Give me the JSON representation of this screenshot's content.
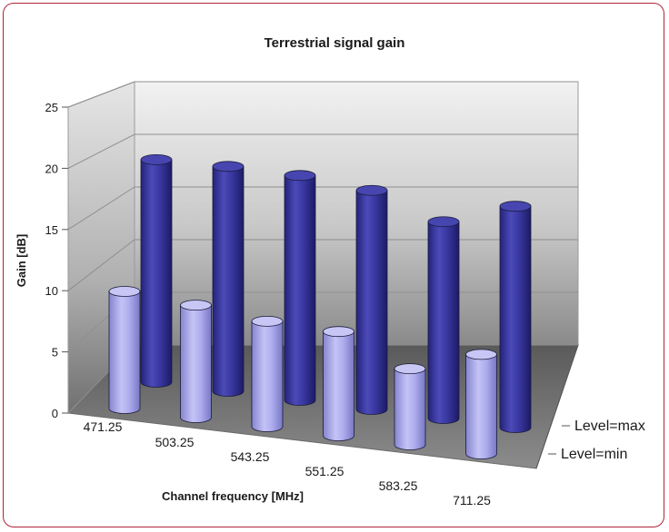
{
  "chart_data": {
    "type": "bar",
    "subtype": "3d-cylinder",
    "title": "Terrestrial signal gain",
    "xlabel": "Channel frequency [MHz]",
    "ylabel": "Gain [dB]",
    "ylim": [
      0,
      25
    ],
    "yticks": [
      0,
      5,
      10,
      15,
      20,
      25
    ],
    "categories": [
      "471.25",
      "503.25",
      "543.25",
      "551.25",
      "583.25",
      "711.25"
    ],
    "series": [
      {
        "name": "Level=max",
        "values": [
          19.0,
          19.2,
          19.2,
          18.7,
          16.8,
          18.9
        ],
        "color": "#3b3aa0"
      },
      {
        "name": "Level=min",
        "values": [
          10.0,
          9.6,
          9.0,
          8.9,
          6.5,
          8.5
        ],
        "color": "#a6a5ea"
      }
    ],
    "grid": true,
    "legend": "depth-axis-right"
  }
}
